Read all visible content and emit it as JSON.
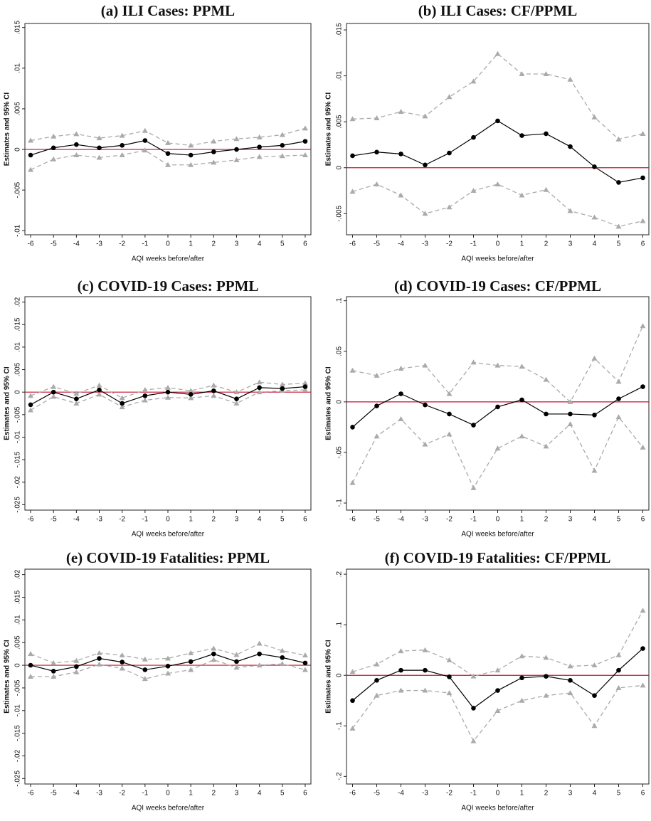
{
  "chart_data": [
    {
      "type": "line",
      "title": "(a) ILI Cases: PPML",
      "ylabel": "Estimates and 95% CI",
      "xlabel": "AQI weeks before/after",
      "x": [
        -6,
        -5,
        -4,
        -3,
        -2,
        -1,
        0,
        1,
        2,
        3,
        4,
        5,
        6
      ],
      "xlim": [
        -6.25,
        6.25
      ],
      "xticks": [
        -6,
        -5,
        -4,
        -3,
        -2,
        -1,
        0,
        1,
        2,
        3,
        4,
        5,
        6
      ],
      "ylim": [
        -0.0105,
        0.0155
      ],
      "yticks": [
        {
          "value": -0.01,
          "label": "-.01"
        },
        {
          "value": -0.005,
          "label": "-.005"
        },
        0,
        {
          "value": 0.005,
          "label": ".005"
        },
        {
          "value": 0.01,
          "label": ".01"
        },
        {
          "value": 0.015,
          "label": ".015"
        }
      ],
      "reference_line": {
        "value": 0,
        "color": "#c8102e"
      },
      "series": [
        {
          "color": "#aaaaaa",
          "style": "dashed",
          "marker": "triangle",
          "values": [
            0.0011,
            0.0016,
            0.0019,
            0.0014,
            0.0017,
            0.0023,
            0.0008,
            0.0005,
            0.001,
            0.0013,
            0.0015,
            0.0018,
            0.0026
          ]
        },
        {
          "color": "#aaaaaa",
          "style": "dashed",
          "marker": "triangle",
          "values": [
            -0.0025,
            -0.0012,
            -0.0007,
            -0.001,
            -0.0007,
            -0.0001,
            -0.0019,
            -0.0019,
            -0.0016,
            -0.0013,
            -0.0009,
            -0.0008,
            -0.0007
          ]
        },
        {
          "color": "#000000",
          "style": "solid",
          "marker": "circle",
          "values": [
            -0.0007,
            0.0002,
            0.0006,
            0.0002,
            0.0005,
            0.0011,
            -0.0005,
            -0.0007,
            -0.0003,
            0,
            0.0003,
            0.0005,
            0.001
          ]
        }
      ]
    },
    {
      "type": "line",
      "title": "(b) ILI Cases: CF/PPML",
      "ylabel": "Estimates and 95% CI",
      "xlabel": "AQI weeks before/after",
      "x": [
        -6,
        -5,
        -4,
        -3,
        -2,
        -1,
        0,
        1,
        2,
        3,
        4,
        5,
        6
      ],
      "xlim": [
        -6.25,
        6.25
      ],
      "xticks": [
        -6,
        -5,
        -4,
        -3,
        -2,
        -1,
        0,
        1,
        2,
        3,
        4,
        5,
        6
      ],
      "ylim": [
        -0.0073,
        0.0157
      ],
      "yticks": [
        {
          "value": -0.005,
          "label": "-.005"
        },
        0,
        {
          "value": 0.005,
          "label": ".005"
        },
        {
          "value": 0.01,
          "label": ".01"
        },
        {
          "value": 0.015,
          "label": ".015"
        }
      ],
      "reference_line": {
        "value": 0,
        "color": "#c8102e"
      },
      "series": [
        {
          "color": "#aaaaaa",
          "style": "dashed",
          "marker": "triangle",
          "values": [
            0.0053,
            0.0054,
            0.0061,
            0.0056,
            0.0077,
            0.0094,
            0.0124,
            0.0102,
            0.0102,
            0.0096,
            0.0055,
            0.0031,
            0.0037
          ]
        },
        {
          "color": "#aaaaaa",
          "style": "dashed",
          "marker": "triangle",
          "values": [
            -0.0026,
            -0.0018,
            -0.003,
            -0.005,
            -0.0043,
            -0.0025,
            -0.0018,
            -0.003,
            -0.0024,
            -0.0047,
            -0.0054,
            -0.0064,
            -0.0058
          ]
        },
        {
          "color": "#000000",
          "style": "solid",
          "marker": "circle",
          "values": [
            0.0013,
            0.0017,
            0.0015,
            0.0003,
            0.0016,
            0.0033,
            0.0051,
            0.0035,
            0.0037,
            0.0023,
            0.0001,
            -0.0016,
            -0.0011
          ]
        }
      ]
    },
    {
      "type": "line",
      "title": "(c) COVID-19 Cases: PPML",
      "ylabel": "Estimates and 95% CI",
      "xlabel": "AQI weeks before/after",
      "x": [
        -6,
        -5,
        -4,
        -3,
        -2,
        -1,
        0,
        1,
        2,
        3,
        4,
        5,
        6
      ],
      "xlim": [
        -6.25,
        6.25
      ],
      "xticks": [
        -6,
        -5,
        -4,
        -3,
        -2,
        -1,
        0,
        1,
        2,
        3,
        4,
        5,
        6
      ],
      "ylim": [
        -0.0262,
        0.0212
      ],
      "yticks": [
        {
          "value": -0.025,
          "label": "-.025"
        },
        {
          "value": -0.02,
          "label": "-.02"
        },
        {
          "value": -0.015,
          "label": "-.015"
        },
        {
          "value": -0.01,
          "label": "-.01"
        },
        {
          "value": -0.005,
          "label": "-.005"
        },
        0,
        {
          "value": 0.005,
          "label": ".005"
        },
        {
          "value": 0.01,
          "label": ".01"
        },
        {
          "value": 0.015,
          "label": ".015"
        },
        {
          "value": 0.02,
          "label": ".02"
        }
      ],
      "reference_line": {
        "value": 0,
        "color": "#c8102e"
      },
      "series": [
        {
          "color": "#aaaaaa",
          "style": "dashed",
          "marker": "triangle",
          "values": [
            -0.0008,
            0.0012,
            -0.0003,
            0.0015,
            -0.0013,
            0.0005,
            0.001,
            0.0003,
            0.0015,
            0,
            0.0022,
            0.0017,
            0.002
          ]
        },
        {
          "color": "#aaaaaa",
          "style": "dashed",
          "marker": "triangle",
          "values": [
            -0.004,
            -0.001,
            -0.0025,
            -0.0005,
            -0.0033,
            -0.0018,
            -0.0012,
            -0.0013,
            -0.0008,
            -0.0025,
            0,
            0.0003,
            0.0005
          ]
        },
        {
          "color": "#000000",
          "style": "solid",
          "marker": "circle",
          "values": [
            -0.0028,
            0,
            -0.0015,
            0.0005,
            -0.0025,
            -0.0008,
            0,
            -0.0005,
            0.0003,
            -0.0015,
            0.001,
            0.0008,
            0.0012
          ]
        }
      ]
    },
    {
      "type": "line",
      "title": "(d) COVID-19 Cases: CF/PPML",
      "ylabel": "Estimates and 95% CI",
      "xlabel": "AQI weeks before/after",
      "x": [
        -6,
        -5,
        -4,
        -3,
        -2,
        -1,
        0,
        1,
        2,
        3,
        4,
        5,
        6
      ],
      "xlim": [
        -6.25,
        6.25
      ],
      "xticks": [
        -6,
        -5,
        -4,
        -3,
        -2,
        -1,
        0,
        1,
        2,
        3,
        4,
        5,
        6
      ],
      "ylim": [
        -0.107,
        0.104
      ],
      "yticks": [
        {
          "value": -0.1,
          "label": "-.1"
        },
        {
          "value": -0.05,
          "label": "-.05"
        },
        0,
        {
          "value": 0.05,
          "label": ".05"
        },
        {
          "value": 0.1,
          "label": ".1"
        }
      ],
      "reference_line": {
        "value": 0,
        "color": "#c8102e"
      },
      "series": [
        {
          "color": "#aaaaaa",
          "style": "dashed",
          "marker": "triangle",
          "values": [
            0.031,
            0.026,
            0.033,
            0.036,
            0.008,
            0.039,
            0.036,
            0.035,
            0.022,
            0,
            0.043,
            0.02,
            0.075
          ]
        },
        {
          "color": "#aaaaaa",
          "style": "dashed",
          "marker": "triangle",
          "values": [
            -0.08,
            -0.034,
            -0.017,
            -0.042,
            -0.032,
            -0.085,
            -0.046,
            -0.034,
            -0.044,
            -0.022,
            -0.068,
            -0.015,
            -0.045
          ]
        },
        {
          "color": "#000000",
          "style": "solid",
          "marker": "circle",
          "values": [
            -0.025,
            -0.004,
            0.008,
            -0.003,
            -0.012,
            -0.023,
            -0.005,
            0.002,
            -0.012,
            -0.012,
            -0.013,
            0.003,
            0.015
          ]
        }
      ]
    },
    {
      "type": "line",
      "title": "(e) COVID-19 Fatalities: PPML",
      "ylabel": "Estimates and 95% CI",
      "xlabel": "AQI weeks before/after",
      "x": [
        -6,
        -5,
        -4,
        -3,
        -2,
        -1,
        0,
        1,
        2,
        3,
        4,
        5,
        6
      ],
      "xlim": [
        -6.25,
        6.25
      ],
      "xticks": [
        -6,
        -5,
        -4,
        -3,
        -2,
        -1,
        0,
        1,
        2,
        3,
        4,
        5,
        6
      ],
      "ylim": [
        -0.0262,
        0.0212
      ],
      "yticks": [
        {
          "value": -0.025,
          "label": "-.025"
        },
        {
          "value": -0.02,
          "label": "-.02"
        },
        {
          "value": -0.015,
          "label": "-.015"
        },
        {
          "value": -0.01,
          "label": "-.01"
        },
        {
          "value": -0.005,
          "label": "-.005"
        },
        0,
        {
          "value": 0.005,
          "label": ".005"
        },
        {
          "value": 0.01,
          "label": ".01"
        },
        {
          "value": 0.015,
          "label": ".015"
        },
        {
          "value": 0.02,
          "label": ".02"
        }
      ],
      "reference_line": {
        "value": 0,
        "color": "#c8102e"
      },
      "series": [
        {
          "color": "#aaaaaa",
          "style": "dashed",
          "marker": "triangle",
          "values": [
            0.0025,
            0.0005,
            0.001,
            0.0027,
            0.0022,
            0.0013,
            0.0015,
            0.0027,
            0.0037,
            0.0023,
            0.0048,
            0.0032,
            0.0022
          ]
        },
        {
          "color": "#aaaaaa",
          "style": "dashed",
          "marker": "triangle",
          "values": [
            -0.0025,
            -0.0025,
            -0.0015,
            0.0002,
            -0.0007,
            -0.003,
            -0.0018,
            -0.001,
            0.0012,
            -0.0005,
            0,
            0.0003,
            -0.001
          ]
        },
        {
          "color": "#000000",
          "style": "solid",
          "marker": "circle",
          "values": [
            0,
            -0.0013,
            -0.0003,
            0.0015,
            0.0007,
            -0.001,
            -0.0002,
            0.0008,
            0.0025,
            0.0008,
            0.0025,
            0.0017,
            0.0005
          ]
        }
      ]
    },
    {
      "type": "line",
      "title": "(f) COVID-19 Fatalities: CF/PPML",
      "ylabel": "Estimates and 95% CI",
      "xlabel": "AQI weeks before/after",
      "x": [
        -6,
        -5,
        -4,
        -3,
        -2,
        -1,
        0,
        1,
        2,
        3,
        4,
        5,
        6
      ],
      "xlim": [
        -6.25,
        6.25
      ],
      "xticks": [
        -6,
        -5,
        -4,
        -3,
        -2,
        -1,
        0,
        1,
        2,
        3,
        4,
        5,
        6
      ],
      "ylim": [
        -0.215,
        0.21
      ],
      "yticks": [
        {
          "value": -0.2,
          "label": "-.2"
        },
        {
          "value": -0.1,
          "label": "-.1"
        },
        0,
        {
          "value": 0.1,
          "label": ".1"
        },
        {
          "value": 0.2,
          "label": ".2"
        }
      ],
      "reference_line": {
        "value": 0,
        "color": "#c8102e"
      },
      "series": [
        {
          "color": "#aaaaaa",
          "style": "dashed",
          "marker": "triangle",
          "values": [
            0.007,
            0.022,
            0.048,
            0.05,
            0.03,
            -0.002,
            0.01,
            0.038,
            0.035,
            0.018,
            0.02,
            0.04,
            0.128
          ]
        },
        {
          "color": "#aaaaaa",
          "style": "dashed",
          "marker": "triangle",
          "values": [
            -0.105,
            -0.04,
            -0.03,
            -0.03,
            -0.035,
            -0.13,
            -0.07,
            -0.05,
            -0.04,
            -0.035,
            -0.1,
            -0.025,
            -0.02
          ]
        },
        {
          "color": "#000000",
          "style": "solid",
          "marker": "circle",
          "values": [
            -0.05,
            -0.01,
            0.01,
            0.01,
            -0.003,
            -0.065,
            -0.03,
            -0.005,
            -0.002,
            -0.01,
            -0.04,
            0.01,
            0.053
          ]
        }
      ]
    }
  ]
}
